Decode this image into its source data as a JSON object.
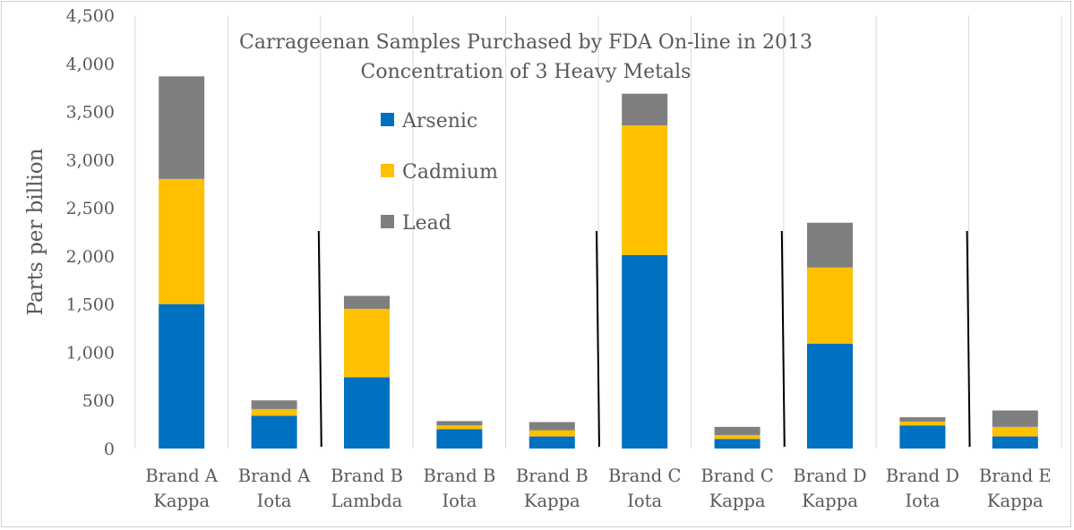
{
  "chart_data": {
    "type": "bar",
    "stacked": true,
    "title": "Carrageenan Samples Purchased by FDA On-line in 2013",
    "subtitle": "Concentration of 3 Heavy Metals",
    "xlabel": "",
    "ylabel": "Parts per billion",
    "ylim": [
      0,
      4500
    ],
    "yticks": [
      0,
      500,
      1000,
      1500,
      2000,
      2500,
      3000,
      3500,
      4000,
      4500
    ],
    "ytick_labels": [
      "0",
      "500",
      "1,000",
      "1,500",
      "2,000",
      "2,500",
      "3,000",
      "3,500",
      "4,000",
      "4,500"
    ],
    "grid": "vertical",
    "legend_position": "inside-top-center",
    "categories": [
      [
        "Brand A",
        "Kappa"
      ],
      [
        "Brand A",
        "Iota"
      ],
      [
        "Brand B",
        "Lambda"
      ],
      [
        "Brand B",
        "Iota"
      ],
      [
        "Brand B",
        "Kappa"
      ],
      [
        "Brand C",
        "Iota"
      ],
      [
        "Brand C",
        "Kappa"
      ],
      [
        "Brand D",
        "Kappa"
      ],
      [
        "Brand D",
        "Iota"
      ],
      [
        "Brand E",
        "Kappa"
      ]
    ],
    "series": [
      {
        "name": "Arsenic",
        "color": "#0070c0",
        "values": [
          1500,
          340,
          740,
          200,
          125,
          2010,
          100,
          1090,
          240,
          125
        ]
      },
      {
        "name": "Cadmium",
        "color": "#ffc000",
        "values": [
          1300,
          70,
          710,
          40,
          65,
          1345,
          40,
          790,
          40,
          100
        ]
      },
      {
        "name": "Lead",
        "color": "#7f7f7f",
        "values": [
          1065,
          90,
          135,
          45,
          85,
          330,
          85,
          465,
          45,
          170
        ]
      }
    ],
    "brand_separators_after_category_index": [
      1,
      4,
      6,
      8
    ]
  }
}
